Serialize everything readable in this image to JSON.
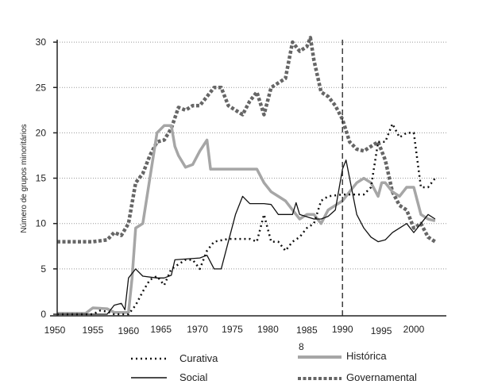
{
  "chart_data": {
    "type": "line",
    "title": "",
    "xlabel": "",
    "ylabel": "Número de grupos minoritários",
    "xlim": [
      1950,
      2003.5
    ],
    "ylim": [
      0,
      30
    ],
    "x_ticks": [
      "1950",
      "1955",
      "1960",
      "1965",
      "1970",
      "1975",
      "1980",
      "1985",
      "1990",
      "1995",
      "2000"
    ],
    "y_ticks": [
      "0",
      "5",
      "10",
      "15",
      "20",
      "25",
      "30"
    ],
    "grid": "horizontal dotted",
    "vline": 1990,
    "stray_label": "8",
    "legend_placement": "bottom",
    "series": [
      {
        "name": "Curativa",
        "style": "dotted",
        "color": "#111111",
        "x": [
          1950,
          1955,
          1956,
          1957,
          1958,
          1960,
          1961,
          1962,
          1963,
          1964,
          1965,
          1966,
          1967,
          1968,
          1969,
          1970,
          1971,
          1972,
          1974,
          1977,
          1978,
          1979,
          1980,
          1981,
          1982,
          1983,
          1984,
          1985,
          1986,
          1987,
          1988,
          1990,
          1993,
          1994,
          1995,
          1996,
          1997,
          1998,
          1999,
          2000,
          2001,
          2002,
          2003
        ],
        "y": [
          0,
          0,
          0.4,
          0.3,
          0,
          0,
          1,
          2.5,
          3.8,
          4.2,
          3.2,
          5,
          5.5,
          6,
          6,
          5,
          7,
          8,
          8.3,
          8.3,
          8,
          11,
          8,
          8,
          7,
          8,
          8.5,
          9.5,
          10,
          12.5,
          13,
          13.2,
          13.2,
          14,
          19,
          19,
          21,
          19.5,
          20,
          20,
          14,
          14,
          15
        ]
      },
      {
        "name": "Histórica",
        "style": "thick-gray",
        "color": "#a6a6a6",
        "x": [
          1950,
          1954,
          1955,
          1957,
          1958,
          1960,
          1960.5,
          1961,
          1962,
          1963,
          1964,
          1965,
          1966,
          1966.5,
          1967,
          1968,
          1969,
          1970,
          1971,
          1971.5,
          1975,
          1978,
          1979,
          1980,
          1981,
          1982,
          1983,
          1984,
          1985,
          1986,
          1987,
          1988,
          1989,
          1990,
          1991,
          1992,
          1993,
          1994,
          1995,
          1995.5,
          1996,
          1997,
          1998,
          1999,
          2000,
          2001,
          2002,
          2003
        ],
        "y": [
          0.1,
          0.1,
          0.7,
          0.6,
          0.2,
          0.2,
          4,
          9.5,
          10,
          15,
          20,
          20.8,
          20.8,
          18.5,
          17.5,
          16.2,
          16.5,
          18,
          19.2,
          16,
          16,
          16,
          14.5,
          13.5,
          13,
          12.5,
          11.5,
          10.5,
          11,
          11,
          10,
          11.5,
          12,
          12.5,
          13.5,
          14.5,
          15,
          14.5,
          13,
          14.5,
          14.5,
          13.5,
          13,
          14,
          14,
          11,
          10.5,
          10.3
        ]
      },
      {
        "name": "Social",
        "style": "solid",
        "color": "#111111",
        "x": [
          1950,
          1957,
          1958,
          1959,
          1959.5,
          1960,
          1961,
          1962,
          1964,
          1965,
          1966,
          1966.5,
          1970,
          1971,
          1972,
          1973,
          1974,
          1975,
          1976,
          1977,
          1979,
          1980,
          1981,
          1983,
          1983.5,
          1984,
          1986,
          1987,
          1988,
          1989,
          1990,
          1990.5,
          1991,
          1992,
          1993,
          1994,
          1995,
          1996,
          1997,
          1998,
          1999,
          2000,
          2001,
          2002,
          2003
        ],
        "y": [
          0,
          0,
          1,
          1.2,
          0.5,
          4,
          5,
          4.2,
          4,
          4,
          4.3,
          6,
          6.2,
          6.5,
          5,
          5,
          8,
          11,
          13,
          12.2,
          12.2,
          12.1,
          11,
          11,
          12.3,
          11,
          10.5,
          10.5,
          10.8,
          11.5,
          16,
          17,
          15,
          11,
          9.5,
          8.5,
          8,
          8.2,
          9,
          9.5,
          10,
          9,
          10,
          11,
          10.5
        ]
      },
      {
        "name": "Governamental",
        "style": "thick-dashed",
        "color": "#666666",
        "x": [
          1950,
          1955,
          1957,
          1958,
          1959,
          1960,
          1961,
          1962,
          1963,
          1964,
          1965,
          1966,
          1967,
          1968,
          1969,
          1970,
          1971,
          1972,
          1973,
          1974,
          1975,
          1976,
          1977,
          1978,
          1979,
          1980,
          1981,
          1982,
          1983,
          1984,
          1985,
          1985.5,
          1986,
          1987,
          1988,
          1989,
          1990,
          1991,
          1992,
          1993,
          1994,
          1995,
          1996,
          1997,
          1998,
          1999,
          2000,
          2001,
          2002,
          2003
        ],
        "y": [
          8,
          8,
          8.2,
          9,
          8.7,
          10,
          14.5,
          15.5,
          17.5,
          19,
          19.2,
          20.5,
          22.8,
          22.5,
          23,
          23,
          24,
          25,
          25,
          23,
          22.5,
          22,
          23.5,
          24.5,
          22,
          25,
          25.5,
          26,
          30,
          29,
          29.5,
          30.5,
          28,
          24.5,
          24,
          23,
          21.5,
          19,
          18.2,
          18,
          18.5,
          19,
          17,
          13.5,
          12,
          11.5,
          9.5,
          10,
          8.5,
          8
        ]
      }
    ]
  }
}
